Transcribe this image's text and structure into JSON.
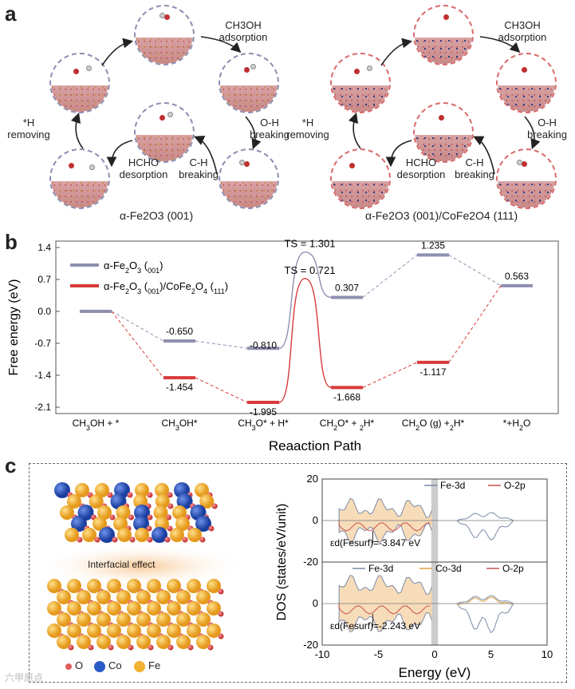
{
  "panel_a": {
    "letter": "a",
    "left_caption": "α-Fe2O3 (001)",
    "right_caption": "α-Fe2O3 (001)/CoFe2O4 (111)",
    "steps": {
      "adsorption": "CH3OH adsorption",
      "oh_breaking": "O-H breaking",
      "ch_breaking": "C-H breaking",
      "hcho_desorption": "HCHO desorption",
      "h_removing": "*H removing"
    }
  },
  "panel_b": {
    "letter": "b",
    "chart_data": {
      "type": "line",
      "title": "",
      "xlabel": "Reaaction Path",
      "ylabel": "Free energy (eV)",
      "ylim": [
        -2.1,
        1.4
      ],
      "yticks": [
        "1.4",
        "0.7",
        "0.0",
        "-0.7",
        "-1.4",
        "-2.1"
      ],
      "categories": [
        "CH3OH + *",
        "CH3OH*",
        "CH3O* + H*",
        "CH2O* + 2H*",
        "CH2O (g) +2H*",
        "*+H2O"
      ],
      "series": [
        {
          "name": "α-Fe2O3 (001)",
          "color": "#8f8fb0",
          "values": [
            0.0,
            -0.65,
            -0.81,
            0.307,
            1.235,
            0.563
          ],
          "labels": [
            "",
            "-0.650",
            "-0.810",
            "0.307",
            "1.235",
            "0.563"
          ],
          "ts_value": 1.301,
          "ts_label": "TS = 1.301"
        },
        {
          "name": "α-Fe2O3 (001)/CoFe2O4 (111)",
          "color": "#d83a3a",
          "values": [
            0.0,
            -1.454,
            -1.995,
            -1.668,
            -1.117,
            0.563
          ],
          "labels": [
            "",
            "-1.454",
            "-1.995",
            "-1.668",
            "-1.117",
            ""
          ],
          "ts_value": 0.721,
          "ts_label": "TS = 0.721"
        }
      ]
    }
  },
  "panel_c": {
    "letter": "c",
    "interfacial_label": "Interfacial effect",
    "legend": [
      {
        "label": "O",
        "color": "#e35b5b"
      },
      {
        "label": "Co",
        "color": "#2a5cc8"
      },
      {
        "label": "Fe",
        "color": "#f2b233"
      }
    ],
    "dos": {
      "ylabel": "DOS (states/eV/unit)",
      "xlabel": "Energy (eV)",
      "xticks": [
        "-10",
        "-5",
        "0",
        "5",
        "10"
      ],
      "top": {
        "yticks": [
          "20",
          "0",
          "-20"
        ],
        "legend": [
          "Fe-3d",
          "O-2p"
        ],
        "annotation": "εd(Fesurf)=-3.847 eV"
      },
      "bottom": {
        "yticks": [
          "20",
          "0",
          "-20"
        ],
        "legend": [
          "Fe-3d",
          "Co-3d",
          "O-2p"
        ],
        "annotation": "εd(Fesurf)=-2.243 eV"
      }
    }
  },
  "watermark": "六甲原点",
  "colors": {
    "fe3d": "#7a8aa8",
    "o2p": "#c85050",
    "co3d": "#e0a040",
    "fill": "#f5d3a8"
  }
}
